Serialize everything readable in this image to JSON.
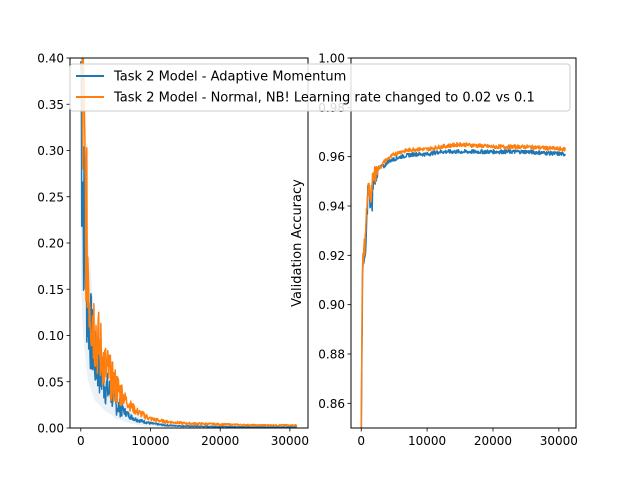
{
  "colors": {
    "series1": "#1f77b4",
    "series2": "#ff7f0e",
    "axis": "#000000",
    "band": "#c5d6e6"
  },
  "legend": {
    "location": "top-left",
    "entries": [
      "Task 2 Model - Adaptive Momentum",
      "Task 2 Model - Normal, NB! Learning rate changed to 0.02 vs 0.1"
    ]
  },
  "chart_data": [
    {
      "type": "line",
      "title": "",
      "xlabel": "",
      "ylabel": "",
      "xlim": [
        -1550,
        32600
      ],
      "ylim": [
        0,
        0.4
      ],
      "xticks": [
        0,
        10000,
        20000,
        30000
      ],
      "xtick_labels": [
        "0",
        "10000",
        "20000",
        "30000"
      ],
      "yticks": [
        0.0,
        0.05,
        0.1,
        0.15,
        0.2,
        0.25,
        0.3,
        0.35,
        0.4
      ],
      "ytick_labels": [
        "0.00",
        "0.05",
        "0.10",
        "0.15",
        "0.20",
        "0.25",
        "0.30",
        "0.35",
        "0.40"
      ],
      "series": [
        {
          "name": "Task 2 Model - Adaptive Momentum",
          "x": [
            0,
            200,
            400,
            600,
            800,
            1000,
            1200,
            1500,
            2000,
            2500,
            3000,
            3500,
            4000,
            4500,
            5000,
            6000,
            7000,
            8000,
            9000,
            10000,
            12000,
            15000,
            20000,
            25000,
            31000
          ],
          "y": [
            0.4,
            0.3,
            0.24,
            0.2,
            0.16,
            0.13,
            0.12,
            0.1,
            0.075,
            0.065,
            0.055,
            0.045,
            0.04,
            0.035,
            0.025,
            0.02,
            0.013,
            0.009,
            0.007,
            0.005,
            0.003,
            0.002,
            0.0015,
            0.001,
            0.001
          ]
        },
        {
          "name": "Task 2 Model - Normal, NB! Learning rate changed to 0.02 vs 0.1",
          "x": [
            0,
            200,
            400,
            600,
            800,
            1000,
            1200,
            1500,
            2000,
            2500,
            3000,
            3500,
            4000,
            4500,
            5000,
            6000,
            7000,
            8000,
            9000,
            10000,
            12000,
            15000,
            20000,
            25000,
            31000
          ],
          "y": [
            0.4,
            0.36,
            0.31,
            0.26,
            0.22,
            0.19,
            0.16,
            0.13,
            0.11,
            0.09,
            0.08,
            0.065,
            0.06,
            0.05,
            0.045,
            0.035,
            0.025,
            0.018,
            0.014,
            0.01,
            0.007,
            0.005,
            0.004,
            0.003,
            0.003
          ]
        }
      ]
    },
    {
      "type": "line",
      "title": "",
      "xlabel": "",
      "ylabel": "Validation Accuracy",
      "xlim": [
        -1550,
        32600
      ],
      "ylim": [
        0.85,
        1.0
      ],
      "xticks": [
        0,
        10000,
        20000,
        30000
      ],
      "xtick_labels": [
        "0",
        "10000",
        "20000",
        "30000"
      ],
      "yticks": [
        0.86,
        0.88,
        0.9,
        0.92,
        0.94,
        0.96,
        0.98,
        1.0
      ],
      "ytick_labels": [
        "0.86",
        "0.88",
        "0.90",
        "0.92",
        "0.94",
        "0.96",
        "0.98",
        "1.00"
      ],
      "series": [
        {
          "name": "Task 2 Model - Adaptive Momentum",
          "x": [
            0,
            100,
            200,
            400,
            600,
            800,
            1000,
            1200,
            1400,
            1600,
            1800,
            2000,
            2500,
            3000,
            3500,
            4000,
            5000,
            6000,
            8000,
            10000,
            12000,
            15000,
            20000,
            25000,
            31000
          ],
          "y": [
            0.845,
            0.88,
            0.91,
            0.92,
            0.916,
            0.93,
            0.946,
            0.944,
            0.94,
            0.938,
            0.948,
            0.952,
            0.955,
            0.956,
            0.956,
            0.958,
            0.959,
            0.96,
            0.961,
            0.961,
            0.962,
            0.962,
            0.962,
            0.962,
            0.961
          ]
        },
        {
          "name": "Task 2 Model - Normal, NB! Learning rate changed to 0.02 vs 0.1",
          "x": [
            0,
            100,
            200,
            400,
            600,
            800,
            1000,
            1200,
            1400,
            1600,
            1800,
            2000,
            2500,
            3000,
            3500,
            4000,
            5000,
            6000,
            8000,
            10000,
            12000,
            15000,
            20000,
            25000,
            31000
          ],
          "y": [
            0.845,
            0.89,
            0.915,
            0.922,
            0.925,
            0.935,
            0.945,
            0.947,
            0.944,
            0.948,
            0.95,
            0.953,
            0.955,
            0.956,
            0.958,
            0.959,
            0.961,
            0.962,
            0.963,
            0.963,
            0.964,
            0.965,
            0.964,
            0.964,
            0.963
          ]
        }
      ]
    }
  ]
}
